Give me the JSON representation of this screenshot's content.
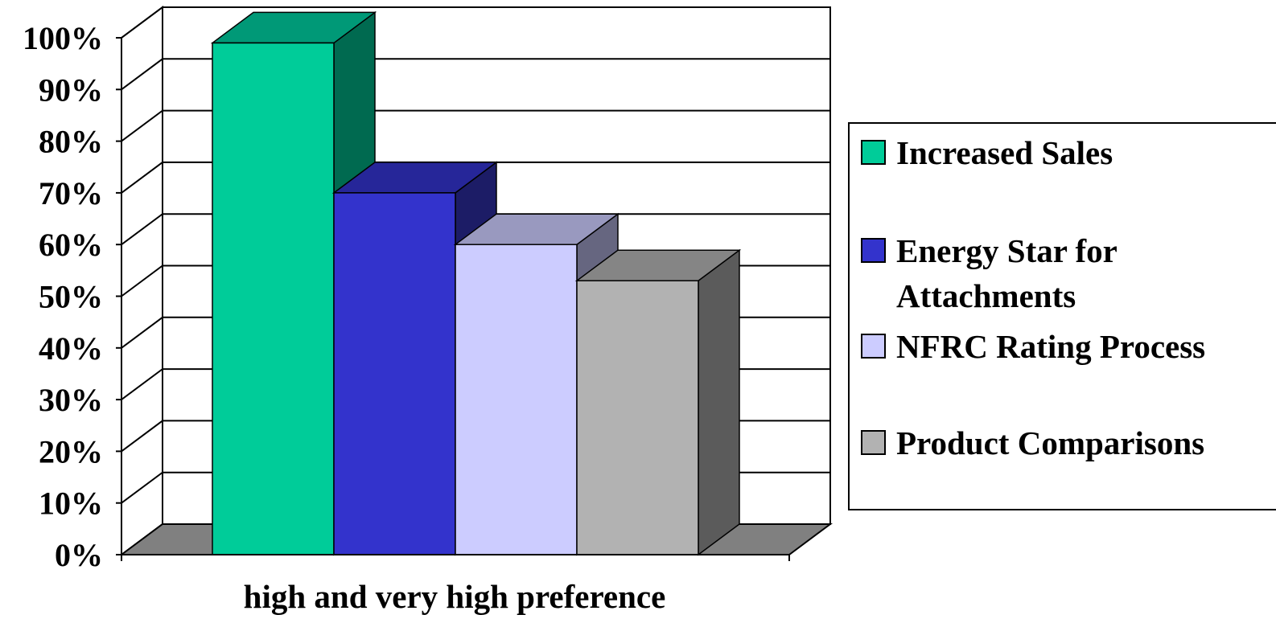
{
  "chart_data": {
    "type": "bar",
    "style": "3d-clustered-column",
    "categories": [
      "high and very high preference"
    ],
    "series": [
      {
        "name": "Increased Sales",
        "values": [
          99
        ],
        "color": "#00CC99",
        "top_color": "#009977",
        "side_color": "#006A50"
      },
      {
        "name": "Energy Star for Attachments",
        "values": [
          70
        ],
        "color": "#3333CC",
        "top_color": "#262699",
        "side_color": "#1C1C66"
      },
      {
        "name": "NFRC Rating Process",
        "values": [
          60
        ],
        "color": "#CCCCFF",
        "top_color": "#9999BF",
        "side_color": "#666680"
      },
      {
        "name": "Product Comparisons",
        "values": [
          53
        ],
        "color": "#B2B2B2",
        "top_color": "#858585",
        "side_color": "#5B5B5B"
      }
    ],
    "xlabel": "high and very high preference",
    "ylabel": "",
    "ylim": [
      0,
      100
    ],
    "yticks": [
      "0%",
      "10%",
      "20%",
      "30%",
      "40%",
      "50%",
      "60%",
      "70%",
      "80%",
      "90%",
      "100%"
    ],
    "grid": true,
    "legend": "right",
    "floor_color": "#808080"
  }
}
